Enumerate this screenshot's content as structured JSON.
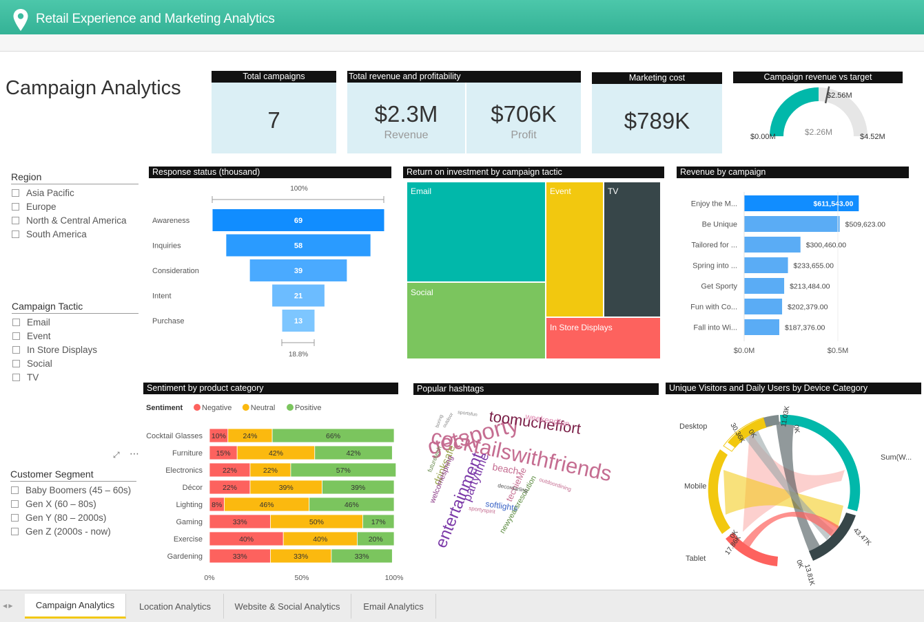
{
  "app": {
    "title": "Retail Experience and Marketing Analytics"
  },
  "page": {
    "title": "Campaign Analytics"
  },
  "kpis": {
    "campaigns": {
      "header": "Total campaigns",
      "value": "7"
    },
    "revenue": {
      "header": "Total revenue and profitability",
      "revenue_value": "$2.3M",
      "revenue_label": "Revenue",
      "profit_value": "$706K",
      "profit_label": "Profit"
    },
    "cost": {
      "header": "Marketing cost",
      "value": "$789K"
    },
    "gauge": {
      "header": "Campaign revenue vs target",
      "min": "$0.00M",
      "max": "$4.52M",
      "value": "$2.26M",
      "target": "$2.56M",
      "fill_fraction": 0.5,
      "target_fraction": 0.566
    }
  },
  "slicers": {
    "region": {
      "title": "Region",
      "items": [
        "Asia Pacific",
        "Europe",
        "North & Central America",
        "South America"
      ]
    },
    "tactic": {
      "title": "Campaign Tactic",
      "items": [
        "Email",
        "Event",
        "In Store Displays",
        "Social",
        "TV"
      ]
    },
    "segment": {
      "title": "Customer Segment",
      "items": [
        "Baby Boomers (45 – 60s)",
        "Gen X (60 – 80s)",
        "Gen Y (80 – 2000s)",
        "Gen Z (2000s - now)"
      ]
    }
  },
  "visuals": {
    "funnel": "Response status (thousand)",
    "treemap": "Return on investment by campaign tactic",
    "revenue": "Revenue by campaign",
    "sentiment": "Sentiment by product category",
    "hashtags": "Popular hashtags",
    "chord": "Unique Visitors and Daily Users by Device Category"
  },
  "chart_data": [
    {
      "type": "funnel",
      "title": "Response status (thousand)",
      "categories": [
        "Awareness",
        "Inquiries",
        "Consideration",
        "Intent",
        "Purchase"
      ],
      "values": [
        69,
        58,
        39,
        21,
        13
      ],
      "labels": [
        "69",
        "58",
        "39",
        "21",
        "13"
      ],
      "top_label": "100%",
      "bottom_label": "18.8%",
      "colors": [
        "#118dff",
        "#2a9bff",
        "#4aaaff",
        "#6cbcff",
        "#7dc6ff"
      ]
    },
    {
      "type": "treemap",
      "title": "Return on investment by campaign tactic",
      "categories": [
        "Email",
        "Social",
        "Event",
        "TV",
        "In Store Displays"
      ],
      "colors": [
        "#01b8aa",
        "#7bc55e",
        "#f2c80f",
        "#374649",
        "#fd625e"
      ]
    },
    {
      "type": "bar",
      "title": "Revenue by campaign",
      "categories": [
        "Enjoy the M...",
        "Be Unique",
        "Tailored for ...",
        "Spring into ...",
        "Get Sporty",
        "Fun with Co...",
        "Fall into Wi..."
      ],
      "values": [
        611543,
        509623,
        300460,
        233655,
        213484,
        202379,
        187376
      ],
      "labels": [
        "$611,543.00",
        "$509,623.00",
        "$300,460.00",
        "$233,655.00",
        "$213,484.00",
        "$202,379.00",
        "$187,376.00"
      ],
      "xticks": [
        "$0.0M",
        "$0.5M"
      ],
      "xlim": [
        0,
        0.78
      ],
      "highlight_color": "#118dff",
      "color": "#5aacf5"
    },
    {
      "type": "bar",
      "stacked": true,
      "title": "Sentiment by product category",
      "legend_title": "Sentiment",
      "categories": [
        "Cocktail Glasses",
        "Furniture",
        "Electronics",
        "Décor",
        "Lighting",
        "Gaming",
        "Exercise",
        "Gardening"
      ],
      "series": [
        {
          "name": "Negative",
          "color": "#fd625e",
          "values": [
            10,
            15,
            22,
            22,
            8,
            33,
            40,
            33
          ],
          "labels": [
            "10%",
            "15%",
            "22%",
            "22%",
            "8%",
            "33%",
            "40%",
            "33%"
          ]
        },
        {
          "name": "Neutral",
          "color": "#fbb90f",
          "values": [
            24,
            42,
            22,
            39,
            46,
            50,
            40,
            33
          ],
          "labels": [
            "24%",
            "42%",
            "22%",
            "39%",
            "46%",
            "50%",
            "40%",
            "33%"
          ]
        },
        {
          "name": "Positive",
          "color": "#7bc55e",
          "values": [
            66,
            42,
            57,
            39,
            46,
            17,
            20,
            33
          ],
          "labels": [
            "66%",
            "42%",
            "57%",
            "39%",
            "46%",
            "17%",
            "20%",
            "33%"
          ]
        }
      ],
      "xticks": [
        "0%",
        "50%",
        "100%"
      ]
    },
    {
      "type": "wordcloud",
      "title": "Popular hashtags",
      "words": [
        "cocktailswithfriends",
        "getsporty",
        "toomucheffort",
        "entertainment",
        "partytime",
        "drinksafe",
        "weekendfun",
        "beach",
        "techieMe",
        "softlights",
        "newyearsresolution",
        "welcomespring",
        "futuretech",
        "sportyspirit",
        "outdoordining",
        "decordarling",
        "sportsfun",
        "outdoor",
        "boring"
      ]
    },
    {
      "type": "chord",
      "title": "Unique Visitors and Daily Users by Device Category",
      "categories": [
        "Desktop",
        "Mobile",
        "Tablet",
        "Sum(W..."
      ],
      "labels": [
        "11.03K",
        "0K",
        "30.36K",
        "0K",
        "43.47K",
        "17.86K",
        "0K",
        "0K",
        "13.81K"
      ]
    }
  ],
  "tabs": [
    {
      "label": "Campaign Analytics",
      "active": true
    },
    {
      "label": "Location Analytics",
      "active": false
    },
    {
      "label": "Website & Social Analytics",
      "active": false
    },
    {
      "label": "Email Analytics",
      "active": false
    }
  ]
}
